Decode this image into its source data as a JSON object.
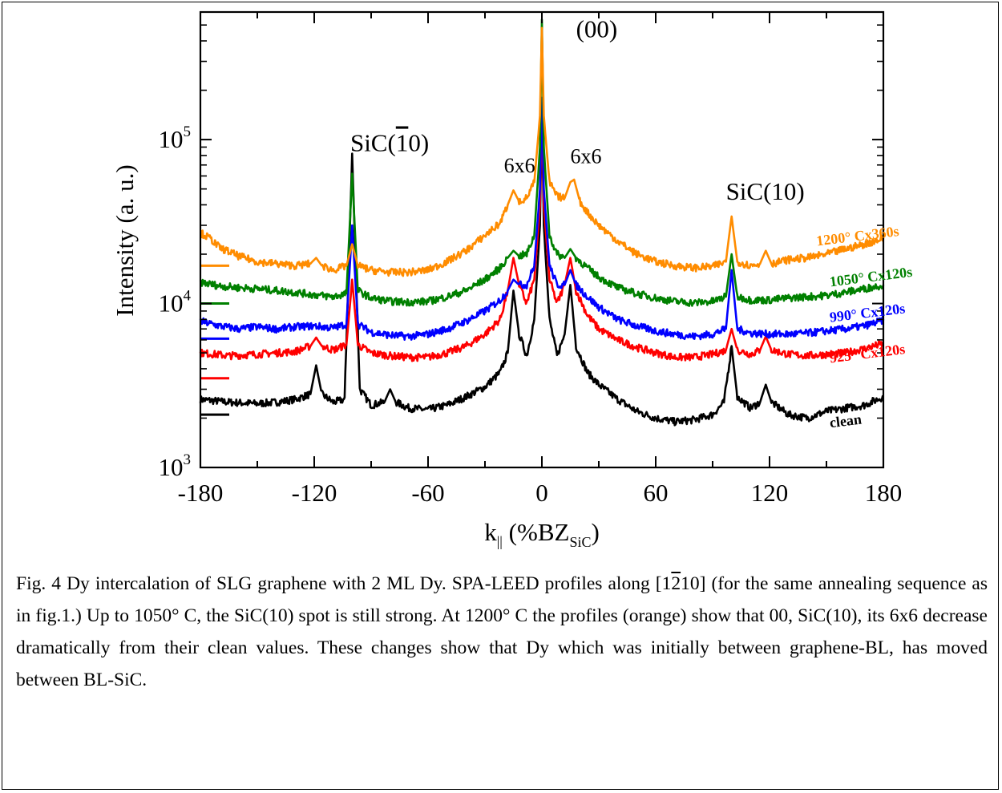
{
  "chart_data": {
    "type": "line",
    "y_scale": "log",
    "xlim": [
      -180,
      180
    ],
    "ylim": [
      1000,
      600000
    ],
    "x_ticks": [
      -180,
      -120,
      -60,
      0,
      60,
      120,
      180
    ],
    "x_tick_labels": [
      "-180",
      "-120",
      "-60",
      "0",
      "60",
      "120",
      "180"
    ],
    "y_ticks": [
      1000,
      10000,
      100000
    ],
    "y_tick_labels": [
      {
        "base": "10",
        "exp": "3"
      },
      {
        "base": "10",
        "exp": "4"
      },
      {
        "base": "10",
        "exp": "5"
      }
    ],
    "xlabel": {
      "main": "k",
      "sub1": "||",
      "rest": " (%BZ",
      "sub2": "SiC",
      "close": ")"
    },
    "ylabel": "Intensity (a. u.)",
    "grid": false,
    "annotations": [
      {
        "text": "(00)",
        "x": 18,
        "y": 420000
      },
      {
        "text": "SiC(",
        "over": "1",
        "tail": "0)",
        "x": -101,
        "y": 85000
      },
      {
        "text": "6x6",
        "x": -20,
        "y": 63000
      },
      {
        "text": "6x6",
        "x": 15,
        "y": 72000
      },
      {
        "text": "SiC(10)",
        "x": 97,
        "y": 43000
      }
    ],
    "series": [
      {
        "name": "clean",
        "color": "#000000",
        "base_marker": 2100,
        "label_x": 152,
        "label_y": 1750,
        "points": [
          [
            -180,
            2600
          ],
          [
            -165,
            2500
          ],
          [
            -150,
            2450
          ],
          [
            -140,
            2500
          ],
          [
            -130,
            2600
          ],
          [
            -122,
            2800
          ],
          [
            -119,
            4200
          ],
          [
            -116,
            2800
          ],
          [
            -110,
            2500
          ],
          [
            -104,
            2600
          ],
          [
            -100,
            80000
          ],
          [
            -96,
            3000
          ],
          [
            -90,
            2400
          ],
          [
            -83,
            2500
          ],
          [
            -80,
            3000
          ],
          [
            -77,
            2500
          ],
          [
            -70,
            2300
          ],
          [
            -60,
            2250
          ],
          [
            -50,
            2400
          ],
          [
            -40,
            2700
          ],
          [
            -30,
            3100
          ],
          [
            -22,
            3800
          ],
          [
            -18,
            5000
          ],
          [
            -15,
            12000
          ],
          [
            -12,
            6500
          ],
          [
            -8,
            4800
          ],
          [
            -4,
            8000
          ],
          [
            -1,
            30000
          ],
          [
            0,
            150000
          ],
          [
            1,
            30000
          ],
          [
            4,
            8000
          ],
          [
            8,
            4800
          ],
          [
            12,
            6500
          ],
          [
            15,
            13000
          ],
          [
            18,
            5500
          ],
          [
            24,
            3800
          ],
          [
            30,
            3200
          ],
          [
            40,
            2600
          ],
          [
            50,
            2200
          ],
          [
            60,
            2000
          ],
          [
            70,
            1900
          ],
          [
            80,
            1950
          ],
          [
            90,
            2100
          ],
          [
            96,
            2500
          ],
          [
            100,
            5500
          ],
          [
            103,
            2700
          ],
          [
            110,
            2300
          ],
          [
            115,
            2500
          ],
          [
            118,
            3200
          ],
          [
            121,
            2500
          ],
          [
            130,
            2100
          ],
          [
            140,
            2000
          ],
          [
            150,
            2200
          ],
          [
            160,
            2300
          ],
          [
            170,
            2400
          ],
          [
            180,
            2700
          ]
        ]
      },
      {
        "name": "925° Cx120s",
        "color": "#ff0000",
        "base_marker": 3500,
        "label_x": 152,
        "label_y": 4350,
        "points": [
          [
            -180,
            5000
          ],
          [
            -165,
            4800
          ],
          [
            -150,
            4900
          ],
          [
            -130,
            5100
          ],
          [
            -122,
            5500
          ],
          [
            -119,
            6200
          ],
          [
            -116,
            5500
          ],
          [
            -110,
            5200
          ],
          [
            -103,
            5600
          ],
          [
            -100,
            14000
          ],
          [
            -97,
            5600
          ],
          [
            -90,
            5000
          ],
          [
            -80,
            4800
          ],
          [
            -70,
            4700
          ],
          [
            -60,
            4700
          ],
          [
            -50,
            5000
          ],
          [
            -40,
            5500
          ],
          [
            -30,
            6500
          ],
          [
            -22,
            8000
          ],
          [
            -18,
            12000
          ],
          [
            -15,
            19000
          ],
          [
            -12,
            13000
          ],
          [
            -8,
            10000
          ],
          [
            -4,
            14000
          ],
          [
            -1,
            40000
          ],
          [
            0,
            150000
          ],
          [
            1,
            40000
          ],
          [
            4,
            14000
          ],
          [
            8,
            10000
          ],
          [
            12,
            13000
          ],
          [
            15,
            19000
          ],
          [
            18,
            12000
          ],
          [
            24,
            8500
          ],
          [
            30,
            7000
          ],
          [
            40,
            6000
          ],
          [
            50,
            5400
          ],
          [
            60,
            5000
          ],
          [
            70,
            4700
          ],
          [
            80,
            4700
          ],
          [
            90,
            4900
          ],
          [
            97,
            5200
          ],
          [
            100,
            7000
          ],
          [
            103,
            5200
          ],
          [
            110,
            4900
          ],
          [
            115,
            5200
          ],
          [
            118,
            6300
          ],
          [
            121,
            5200
          ],
          [
            130,
            4900
          ],
          [
            140,
            4800
          ],
          [
            150,
            4900
          ],
          [
            160,
            5000
          ],
          [
            170,
            5300
          ],
          [
            180,
            5700
          ]
        ]
      },
      {
        "name": "990° Cx120s",
        "color": "#0000ff",
        "base_marker": 6100,
        "label_x": 152,
        "label_y": 7700,
        "points": [
          [
            -180,
            7800
          ],
          [
            -170,
            7300
          ],
          [
            -160,
            7000
          ],
          [
            -150,
            7200
          ],
          [
            -140,
            7000
          ],
          [
            -130,
            7200
          ],
          [
            -120,
            7300
          ],
          [
            -110,
            7100
          ],
          [
            -103,
            7500
          ],
          [
            -100,
            30000
          ],
          [
            -97,
            7500
          ],
          [
            -90,
            6700
          ],
          [
            -80,
            6400
          ],
          [
            -70,
            6300
          ],
          [
            -60,
            6500
          ],
          [
            -50,
            7000
          ],
          [
            -40,
            7800
          ],
          [
            -30,
            9000
          ],
          [
            -22,
            10500
          ],
          [
            -18,
            12000
          ],
          [
            -15,
            14000
          ],
          [
            -12,
            13000
          ],
          [
            -8,
            13000
          ],
          [
            -4,
            17000
          ],
          [
            -1,
            50000
          ],
          [
            0,
            180000
          ],
          [
            1,
            50000
          ],
          [
            4,
            17000
          ],
          [
            8,
            13000
          ],
          [
            12,
            13000
          ],
          [
            15,
            16000
          ],
          [
            18,
            13000
          ],
          [
            24,
            11000
          ],
          [
            30,
            9500
          ],
          [
            40,
            8000
          ],
          [
            50,
            7300
          ],
          [
            60,
            6800
          ],
          [
            70,
            6500
          ],
          [
            80,
            6300
          ],
          [
            90,
            6500
          ],
          [
            97,
            7000
          ],
          [
            100,
            16000
          ],
          [
            103,
            7000
          ],
          [
            110,
            6600
          ],
          [
            120,
            6500
          ],
          [
            130,
            6500
          ],
          [
            140,
            6600
          ],
          [
            150,
            6800
          ],
          [
            160,
            7000
          ],
          [
            170,
            7300
          ],
          [
            180,
            7900
          ]
        ]
      },
      {
        "name": "1050° Cx120s",
        "color": "#008000",
        "base_marker": 10000,
        "label_x": 152,
        "label_y": 12700,
        "points": [
          [
            -180,
            13500
          ],
          [
            -170,
            12800
          ],
          [
            -160,
            12500
          ],
          [
            -150,
            12300
          ],
          [
            -140,
            12000
          ],
          [
            -130,
            11700
          ],
          [
            -120,
            11300
          ],
          [
            -110,
            11000
          ],
          [
            -103,
            11500
          ],
          [
            -100,
            62000
          ],
          [
            -97,
            12000
          ],
          [
            -90,
            10800
          ],
          [
            -80,
            10300
          ],
          [
            -70,
            10200
          ],
          [
            -60,
            10300
          ],
          [
            -50,
            11000
          ],
          [
            -40,
            12000
          ],
          [
            -30,
            14000
          ],
          [
            -22,
            16500
          ],
          [
            -18,
            19000
          ],
          [
            -15,
            21000
          ],
          [
            -12,
            19500
          ],
          [
            -8,
            20000
          ],
          [
            -4,
            26000
          ],
          [
            -1,
            90000
          ],
          [
            0,
            540000
          ],
          [
            1,
            90000
          ],
          [
            4,
            26000
          ],
          [
            8,
            20000
          ],
          [
            12,
            19000
          ],
          [
            15,
            21500
          ],
          [
            18,
            19000
          ],
          [
            24,
            16500
          ],
          [
            30,
            14500
          ],
          [
            40,
            12500
          ],
          [
            50,
            11500
          ],
          [
            60,
            10800
          ],
          [
            70,
            10300
          ],
          [
            80,
            10100
          ],
          [
            90,
            10300
          ],
          [
            97,
            11000
          ],
          [
            100,
            20000
          ],
          [
            103,
            11000
          ],
          [
            110,
            10500
          ],
          [
            120,
            10500
          ],
          [
            130,
            10800
          ],
          [
            140,
            11000
          ],
          [
            150,
            11200
          ],
          [
            160,
            11700
          ],
          [
            170,
            12300
          ],
          [
            180,
            13000
          ]
        ]
      },
      {
        "name": "1200° Cx360s",
        "color": "#ff8c00",
        "base_marker": 17000,
        "label_x": 145,
        "label_y": 22500,
        "points": [
          [
            -180,
            27000
          ],
          [
            -175,
            25000
          ],
          [
            -170,
            22000
          ],
          [
            -160,
            19500
          ],
          [
            -150,
            18000
          ],
          [
            -140,
            17500
          ],
          [
            -130,
            17000
          ],
          [
            -122,
            17500
          ],
          [
            -119,
            19000
          ],
          [
            -116,
            17000
          ],
          [
            -110,
            16000
          ],
          [
            -103,
            17000
          ],
          [
            -100,
            23000
          ],
          [
            -97,
            17000
          ],
          [
            -90,
            16000
          ],
          [
            -80,
            15500
          ],
          [
            -70,
            15500
          ],
          [
            -60,
            16000
          ],
          [
            -50,
            18000
          ],
          [
            -40,
            21000
          ],
          [
            -30,
            26000
          ],
          [
            -22,
            31000
          ],
          [
            -18,
            40000
          ],
          [
            -15,
            49000
          ],
          [
            -12,
            42000
          ],
          [
            -8,
            44000
          ],
          [
            -4,
            55000
          ],
          [
            -1,
            140000
          ],
          [
            0,
            480000
          ],
          [
            1,
            140000
          ],
          [
            4,
            55000
          ],
          [
            8,
            45000
          ],
          [
            12,
            44000
          ],
          [
            15,
            55000
          ],
          [
            17,
            57000
          ],
          [
            20,
            42000
          ],
          [
            24,
            36000
          ],
          [
            30,
            30000
          ],
          [
            40,
            24000
          ],
          [
            50,
            20000
          ],
          [
            60,
            18000
          ],
          [
            70,
            17000
          ],
          [
            80,
            16500
          ],
          [
            90,
            16800
          ],
          [
            97,
            18000
          ],
          [
            100,
            34000
          ],
          [
            103,
            18000
          ],
          [
            110,
            17000
          ],
          [
            115,
            17500
          ],
          [
            118,
            21000
          ],
          [
            121,
            17500
          ],
          [
            130,
            18500
          ],
          [
            140,
            19000
          ],
          [
            150,
            20000
          ],
          [
            160,
            21500
          ],
          [
            170,
            23000
          ],
          [
            180,
            25000
          ]
        ]
      }
    ]
  },
  "caption": {
    "line1_pre": "Fig. 4 Dy intercalation of SLG graphene with 2 ML Dy. SPA-LEED profiles along [1",
    "line1_over": "2",
    "line1_post": "10] (for the same annealing sequence as in fig.1.) Up to 1050° C, the SiC(10) spot is still strong. At 1200° C the profiles (orange) show that 00, SiC(10), its 6x6 decrease dramatically from their clean values. These changes show that Dy which was initially between graphene-BL, has moved between BL-SiC."
  }
}
